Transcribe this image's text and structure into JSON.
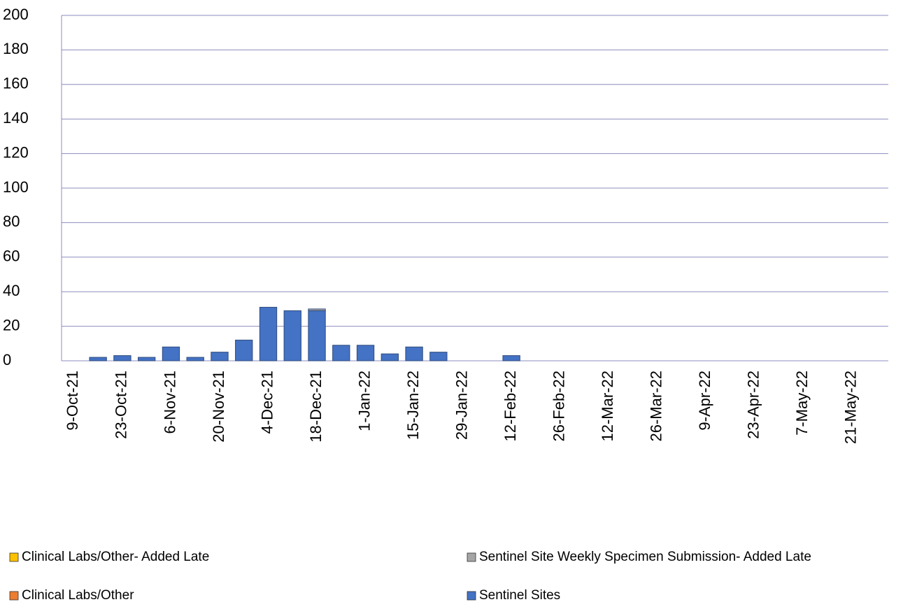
{
  "chart_data": {
    "type": "stacked_bar",
    "categories": [
      "9-Oct-21",
      null,
      "23-Oct-21",
      null,
      "6-Nov-21",
      null,
      "20-Nov-21",
      null,
      "4-Dec-21",
      null,
      "18-Dec-21",
      null,
      "1-Jan-22",
      null,
      "15-Jan-22",
      null,
      "29-Jan-22",
      null,
      "12-Feb-22",
      null,
      "26-Feb-22",
      null,
      "12-Mar-22",
      null,
      "26-Mar-22",
      null,
      "9-Apr-22",
      null,
      "23-Apr-22",
      null,
      "7-May-22",
      null,
      "21-May-22",
      null
    ],
    "series": [
      {
        "name": "Sentinel Sites",
        "color": "#4472c4",
        "values": [
          0,
          2,
          3,
          2,
          8,
          2,
          5,
          12,
          31,
          29,
          29,
          9,
          9,
          4,
          8,
          5,
          0,
          0,
          3,
          0,
          0,
          0,
          0,
          0,
          0,
          0,
          0,
          0,
          0,
          0,
          0,
          0,
          0,
          0
        ]
      },
      {
        "name": "Clinical Labs/Other",
        "color": "#ed7d31",
        "values": [
          0,
          0,
          0,
          0,
          0,
          0,
          0,
          0,
          0,
          0,
          0,
          0,
          0,
          0,
          0,
          0,
          0,
          0,
          0,
          0,
          0,
          0,
          0,
          0,
          0,
          0,
          0,
          0,
          0,
          0,
          0,
          0,
          0,
          0
        ]
      },
      {
        "name": "Sentinel Site Weekly Specimen Submission- Added Late",
        "color": "#a5a5a5",
        "values": [
          0,
          0,
          0,
          0,
          0,
          0,
          0,
          0,
          0,
          0,
          1,
          0,
          0,
          0,
          0,
          0,
          0,
          0,
          0,
          0,
          0,
          0,
          0,
          0,
          0,
          0,
          0,
          0,
          0,
          0,
          0,
          0,
          0,
          0
        ]
      },
      {
        "name": "Clinical Labs/Other- Added Late",
        "color": "#ffc000",
        "values": [
          0,
          0,
          0,
          0,
          0,
          0,
          0,
          0,
          0,
          0,
          0,
          0,
          0,
          0,
          0,
          0,
          0,
          0,
          0,
          0,
          0,
          0,
          0,
          0,
          0,
          0,
          0,
          0,
          0,
          0,
          0,
          0,
          0,
          0
        ]
      }
    ],
    "ylim": [
      0,
      200
    ],
    "yticks": [
      0,
      20,
      40,
      60,
      80,
      100,
      120,
      140,
      160,
      180,
      200
    ],
    "grid": true
  }
}
